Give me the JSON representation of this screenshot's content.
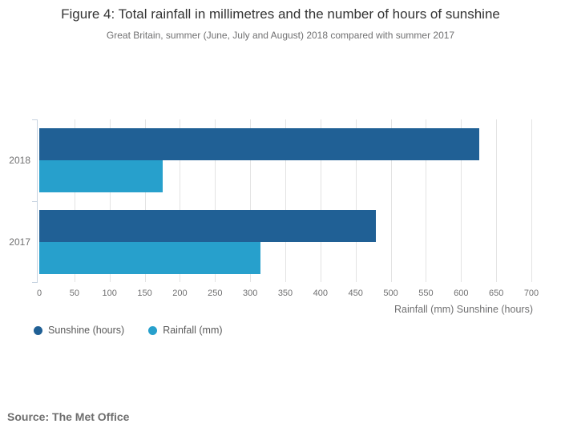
{
  "title": "Figure 4: Total rainfall in millimetres and the number of hours of sunshine",
  "subtitle": "Great Britain, summer (June, July and August) 2018 compared with summer 2017",
  "source": "Source: The Met Office",
  "colors": {
    "sunshine": "#206095",
    "rainfall": "#27A0CC",
    "gridline": "#e3e3e3",
    "axis_line": "#c7d3e0",
    "title_text": "#333333",
    "muted_text": "#707071"
  },
  "chart_data": {
    "type": "bar",
    "orientation": "horizontal",
    "title": "Figure 4: Total rainfall in millimetres and the number of hours of sunshine",
    "subtitle": "Great Britain, summer (June, July and August) 2018 compared with summer 2017",
    "categories": [
      "2018",
      "2017"
    ],
    "series": [
      {
        "name": "Sunshine (hours)",
        "color": "#206095",
        "values": [
          626,
          479
        ]
      },
      {
        "name": "Rainfall (mm)",
        "color": "#27A0CC",
        "values": [
          175,
          315
        ]
      }
    ],
    "xlabel": "Rainfall (mm) Sunshine (hours)",
    "ylabel": "",
    "xlim": [
      0,
      700
    ],
    "xticks": [
      0,
      50,
      100,
      150,
      200,
      250,
      300,
      350,
      400,
      450,
      500,
      550,
      600,
      650,
      700
    ],
    "grid": true,
    "legend_position": "bottom-left"
  }
}
